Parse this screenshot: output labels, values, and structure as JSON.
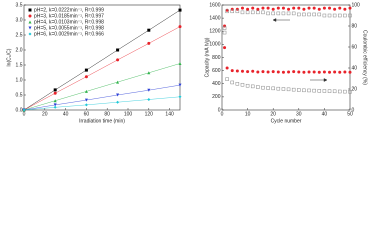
{
  "chart_data": [
    {
      "type": "scatter",
      "lines": true,
      "x_label": "Irradiation time (min)",
      "y_label": "ln(C₀/C)",
      "xlim": [
        0,
        150
      ],
      "xticks": [
        0,
        20,
        40,
        60,
        80,
        100,
        120,
        140
      ],
      "ylim": [
        0,
        3.5
      ],
      "yticks": [
        {
          "value": 0,
          "label": "0.0"
        },
        0.5,
        {
          "value": 1,
          "label": "1.0"
        },
        1.5,
        {
          "value": 2,
          "label": "2.0"
        },
        2.5,
        {
          "value": 3,
          "label": "3.0"
        },
        3.5
      ],
      "legend": "upper left",
      "x": [
        0,
        30,
        60,
        90,
        120,
        150
      ],
      "series": [
        {
          "name": "pH=2, k=0.0222min⁻¹, R²:0.999",
          "color": "#000000",
          "marker": "square",
          "values": [
            0,
            0.67,
            1.33,
            2.0,
            2.66,
            3.33
          ]
        },
        {
          "name": "pH=3, k=0.0185min⁻¹, R²:0.997",
          "color": "#e8222a",
          "marker": "circle",
          "values": [
            0,
            0.56,
            1.11,
            1.67,
            2.22,
            2.78
          ]
        },
        {
          "name": "pH=4, k=0.0103min⁻¹, R²:0.998",
          "color": "#2fb34a",
          "marker": "triangle",
          "values": [
            0,
            0.31,
            0.62,
            0.93,
            1.24,
            1.55
          ]
        },
        {
          "name": "pH=5, k=0.0055min⁻¹, R²:0.998",
          "color": "#2c3fd6",
          "marker": "triangle-down",
          "values": [
            0,
            0.17,
            0.33,
            0.5,
            0.66,
            0.83
          ]
        },
        {
          "name": "pH=6, k=0.0029min⁻¹, R²:0.966",
          "color": "#1fc8d8",
          "marker": "diamond",
          "values": [
            0,
            0.09,
            0.17,
            0.26,
            0.35,
            0.44
          ]
        }
      ]
    },
    {
      "type": "scatter",
      "lines": false,
      "x_label": "Cycle number",
      "y_label": "Capacity (mA h/g)",
      "y2_label": "Coulombic efficiency (%)",
      "xlim": [
        0,
        50
      ],
      "xticks": [
        0,
        10,
        20,
        30,
        40,
        50
      ],
      "ylim": [
        0,
        1600
      ],
      "yticks": [
        0,
        200,
        400,
        600,
        800,
        1000,
        1200,
        1400,
        1600
      ],
      "y2lim": [
        0,
        100
      ],
      "y2ticks": [
        0,
        20,
        40,
        60,
        80,
        100
      ],
      "x": [
        1,
        2,
        4,
        6,
        8,
        10,
        12,
        14,
        16,
        18,
        20,
        22,
        24,
        26,
        28,
        30,
        32,
        34,
        36,
        38,
        40,
        42,
        44,
        46,
        48,
        50
      ],
      "series": [
        {
          "color": "#e8222a",
          "marker": "circle",
          "axis": "y2",
          "values": [
            80,
            95,
            96,
            96,
            97,
            96,
            97,
            96,
            97,
            97,
            96,
            97,
            97,
            96,
            97,
            97,
            96,
            97,
            97,
            96,
            97,
            97,
            96,
            97,
            96,
            97
          ]
        },
        {
          "color": "#888888",
          "marker": "open-square",
          "axis": "y2",
          "values": [
            78,
            94,
            94,
            94,
            93,
            93,
            93,
            93,
            93,
            92,
            92,
            92,
            92,
            92,
            92,
            91,
            91,
            91,
            91,
            91,
            90,
            90,
            90,
            90,
            90,
            90
          ]
        },
        {
          "color": "#e8222a",
          "marker": "circle",
          "values": [
            950,
            640,
            600,
            595,
            590,
            585,
            590,
            580,
            585,
            580,
            585,
            580,
            575,
            580,
            585,
            580,
            575,
            580,
            580,
            575,
            580,
            575,
            580,
            575,
            580,
            575
          ]
        },
        {
          "color": "#888888",
          "marker": "open-square",
          "values": [
            1180,
            470,
            420,
            400,
            385,
            370,
            360,
            350,
            340,
            335,
            330,
            325,
            320,
            315,
            310,
            305,
            300,
            298,
            295,
            292,
            290,
            287,
            285,
            282,
            280,
            278
          ]
        }
      ]
    }
  ]
}
